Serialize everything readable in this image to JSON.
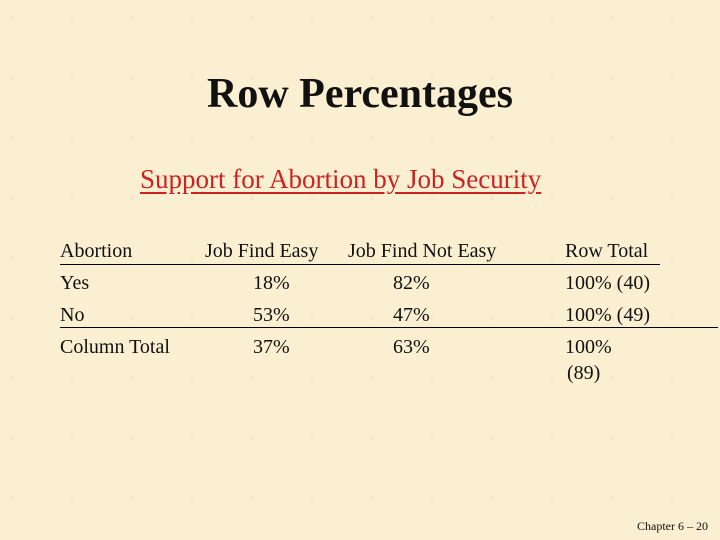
{
  "slide": {
    "title": "Row Percentages",
    "subtitle": "Support for Abortion by Job Security",
    "footer": "Chapter 6 – 20"
  },
  "table": {
    "headers": [
      "Abortion",
      "Job Find Easy",
      "Job Find Not Easy",
      "Row Total"
    ],
    "rows": [
      [
        "Yes",
        "18%",
        "82%",
        "100% (40)"
      ],
      [
        "No",
        "53%",
        "47%",
        "100% (49)"
      ],
      [
        "Column Total",
        "37%",
        "63%",
        "100%"
      ]
    ],
    "total_n": "(89)"
  }
}
